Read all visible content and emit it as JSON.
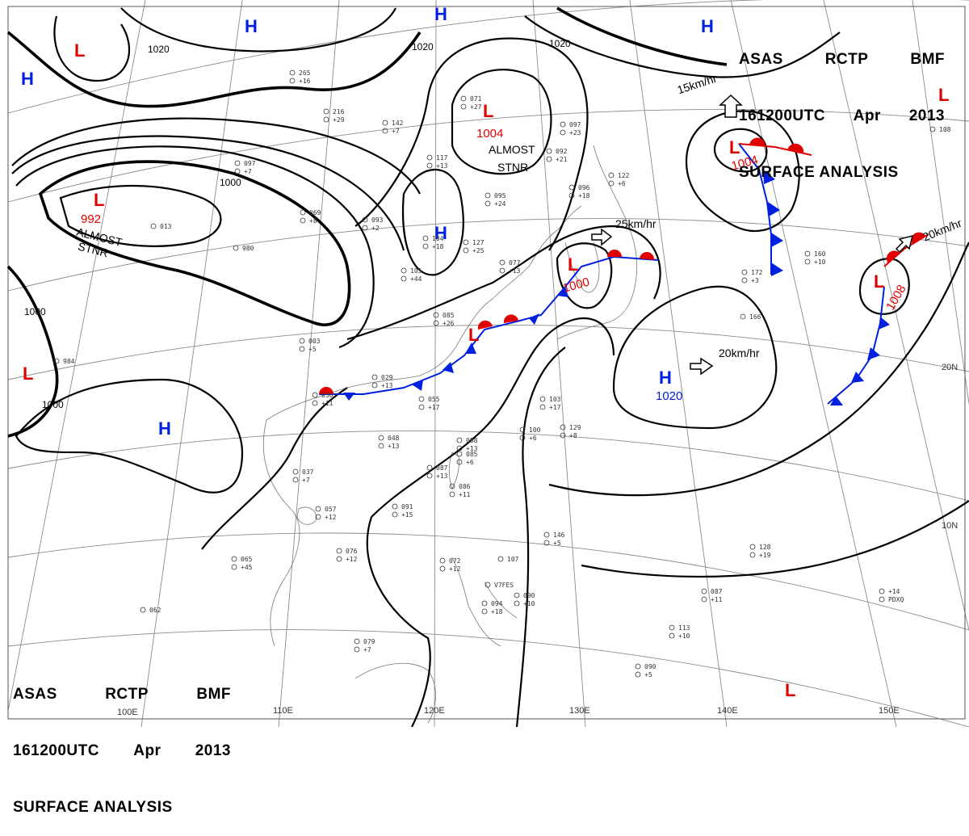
{
  "header": {
    "line1": [
      "ASAS",
      "RCTP",
      "BMF"
    ],
    "line2": [
      "161200UTC",
      "Apr",
      "2013"
    ],
    "line3": "SURFACE ANALYSIS"
  },
  "colors": {
    "low": "#e00000",
    "high": "#0020e0",
    "warm_front": "#e00000",
    "cold_front": "#0020e0",
    "isobar": "#000000",
    "grid": "#8a8a8a"
  },
  "longitude_labels": [
    "100E",
    "110E",
    "120E",
    "130E",
    "140E",
    "150E"
  ],
  "latitude_labels": [
    "20N",
    "10N"
  ],
  "isobar_labels": [
    "1020",
    "1020",
    "1020",
    "1000",
    "1000",
    "1000"
  ],
  "pressure_systems": [
    {
      "type": "L",
      "pressure": "",
      "note": ""
    },
    {
      "type": "L",
      "pressure": "992",
      "note": "ALMOST STNR"
    },
    {
      "type": "L",
      "pressure": "1004",
      "note": "ALMOST STNR"
    },
    {
      "type": "L",
      "pressure": "1004",
      "note": ""
    },
    {
      "type": "L",
      "pressure": "1000",
      "note": ""
    },
    {
      "type": "L",
      "pressure": "1008",
      "note": ""
    },
    {
      "type": "L",
      "pressure": "",
      "note": ""
    },
    {
      "type": "L",
      "pressure": "",
      "note": ""
    },
    {
      "type": "L",
      "pressure": "",
      "note": ""
    },
    {
      "type": "H",
      "pressure": "",
      "note": ""
    },
    {
      "type": "H",
      "pressure": "",
      "note": ""
    },
    {
      "type": "H",
      "pressure": "",
      "note": ""
    },
    {
      "type": "H",
      "pressure": "",
      "note": ""
    },
    {
      "type": "H",
      "pressure": "",
      "note": ""
    },
    {
      "type": "H",
      "pressure": "1020",
      "note": ""
    }
  ],
  "movements": [
    "15km/hr",
    "25km/hr",
    "20km/hr",
    "20km/hr"
  ],
  "station_codes": [
    "065",
    "+45",
    "076",
    "+12",
    "057",
    "+12",
    "037",
    "+7",
    "091",
    "+15",
    "086",
    "+11",
    "087",
    "+13",
    "085",
    "+6",
    "088",
    "+13",
    "048",
    "+13",
    "055",
    "+17",
    "029",
    "+13",
    "030",
    "+11",
    "003",
    "+5",
    "085",
    "+26",
    "105",
    "+44",
    "104",
    "+18",
    "127",
    "+25",
    "095",
    "+24",
    "117",
    "+13",
    "093",
    "+2",
    "069",
    "+8",
    "097",
    "+7",
    "142",
    "+7",
    "216",
    "+29",
    "265",
    "+16",
    "071",
    "+27",
    "097",
    "+23",
    "092",
    "+21",
    "096",
    "+18",
    "122",
    "+6",
    "077",
    "+13",
    "172",
    "+3",
    "160",
    "+10",
    "166",
    "103",
    "+17",
    "100",
    "+6",
    "129",
    "+8",
    "146",
    "+5",
    "072",
    "+12",
    "094",
    "+18",
    "090",
    "+10",
    "107",
    "128",
    "+19",
    "087",
    "+11",
    "113",
    "+10",
    "090",
    "+5",
    "079",
    "+7",
    "062",
    "984",
    "980",
    "013",
    "108",
    "+14",
    "PDXQ",
    "V7FES"
  ]
}
